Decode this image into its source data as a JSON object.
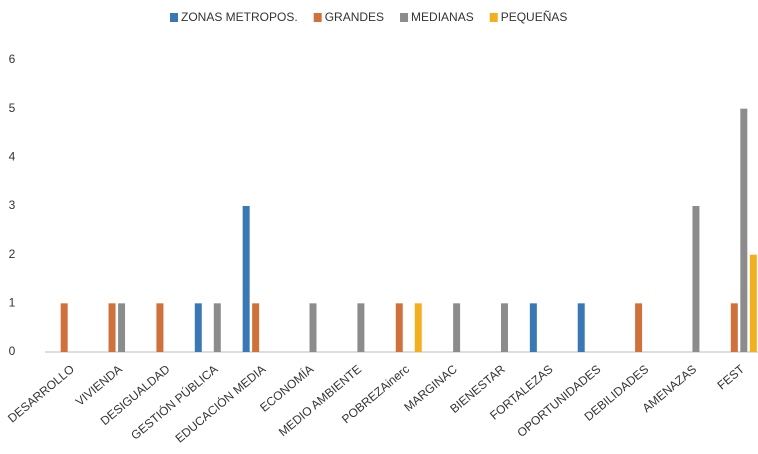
{
  "chart_data": {
    "type": "bar",
    "categories": [
      "DESARROLLO",
      "VIVIENDA",
      "DESIGUALDAD",
      "GESTIÓN PÚBLICA",
      "EDUCACIÓN MEDIA",
      "ECONOMÍA",
      "MEDIO AMBIENTE",
      "POBREZAinerc",
      "MARGINAC",
      "BIENESTAR",
      "FORTALEZAS",
      "OPORTUNIDADES",
      "DEBILIDADES",
      "AMENAZAS",
      "FEST"
    ],
    "series": [
      {
        "name": "ZONAS METROPOS.",
        "color": "#3a78b5",
        "values": [
          0,
          0,
          0,
          1,
          3,
          0,
          0,
          0,
          0,
          0,
          1,
          1,
          0,
          0,
          0
        ]
      },
      {
        "name": "GRANDES",
        "color": "#d0703a",
        "values": [
          1,
          1,
          1,
          0,
          1,
          0,
          0,
          1,
          0,
          0,
          0,
          0,
          1,
          0,
          1
        ]
      },
      {
        "name": "MEDIANAS",
        "color": "#8c8c8c",
        "values": [
          0,
          1,
          0,
          1,
          0,
          1,
          1,
          0,
          1,
          1,
          0,
          0,
          0,
          3,
          5
        ]
      },
      {
        "name": "PEQUEÑAS",
        "color": "#f2b01e",
        "values": [
          0,
          0,
          0,
          0,
          0,
          0,
          0,
          1,
          0,
          0,
          0,
          0,
          0,
          0,
          2
        ]
      }
    ],
    "ylim": [
      0,
      6
    ],
    "yticks": [
      0,
      1,
      2,
      3,
      4,
      5,
      6
    ],
    "legend": "top"
  }
}
